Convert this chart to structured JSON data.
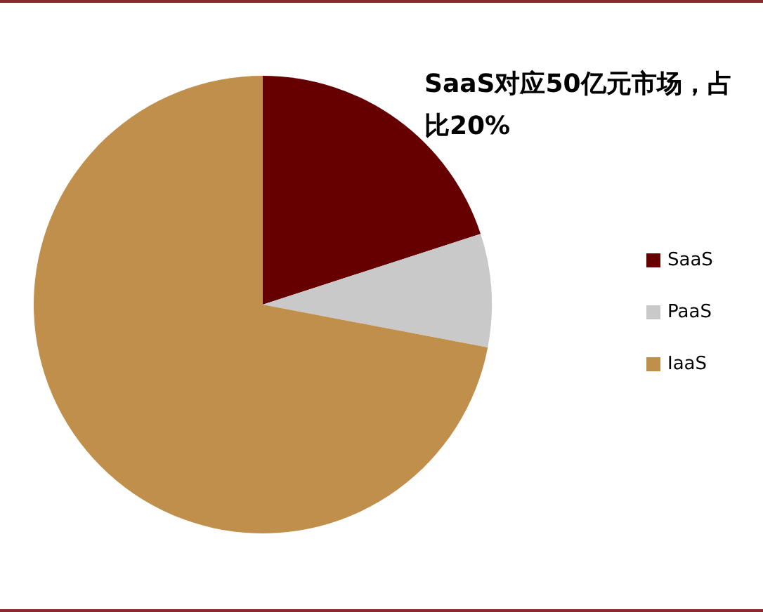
{
  "chart_data": {
    "type": "pie",
    "categories": [
      "SaaS",
      "PaaS",
      "IaaS"
    ],
    "values": [
      20,
      8,
      72
    ],
    "colors": [
      "#660000",
      "#c9c9c9",
      "#bf8f4b"
    ],
    "annotations": [
      "SaaS对应50亿元市场，占比20%"
    ],
    "legend": "right"
  }
}
